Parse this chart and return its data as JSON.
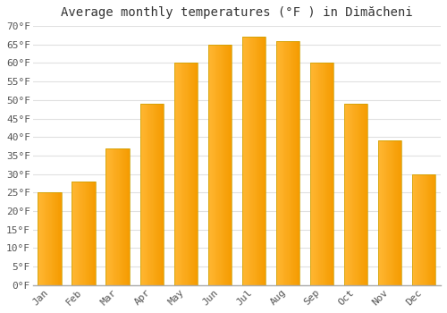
{
  "title": "Average monthly temperatures (°F ) in Dimăcheni",
  "months": [
    "Jan",
    "Feb",
    "Mar",
    "Apr",
    "May",
    "Jun",
    "Jul",
    "Aug",
    "Sep",
    "Oct",
    "Nov",
    "Dec"
  ],
  "values": [
    25,
    28,
    37,
    49,
    60,
    65,
    67,
    66,
    60,
    49,
    39,
    30
  ],
  "bar_color_left": "#FFB733",
  "bar_color_right": "#F59B00",
  "bar_edge_color": "#C8A000",
  "ylim": [
    0,
    70
  ],
  "ytick_step": 5,
  "background_color": "#ffffff",
  "plot_bg_color": "#ffffff",
  "grid_color": "#e0e0e0",
  "title_fontsize": 10,
  "tick_fontsize": 8,
  "axis_label_color": "#555555"
}
